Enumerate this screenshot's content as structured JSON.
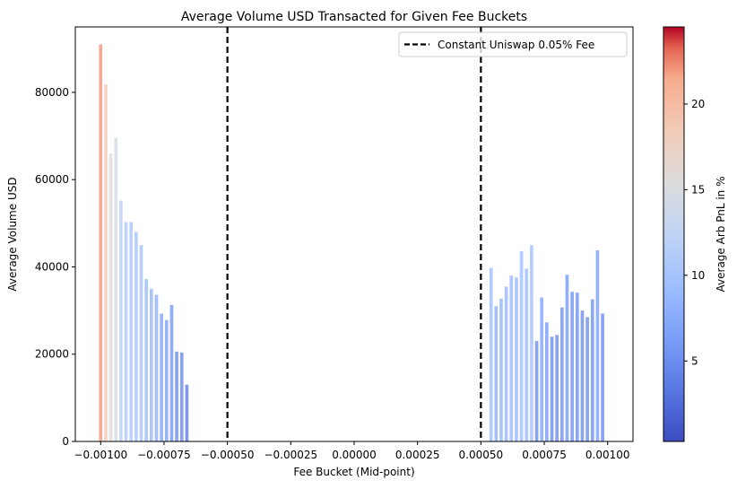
{
  "chart_data": {
    "type": "bar",
    "title": "Average Volume USD Transacted for Given Fee Buckets",
    "xlabel": "Fee Bucket (Mid-point)",
    "ylabel": "Average Volume USD",
    "xlim": [
      -0.0011,
      0.0011
    ],
    "ylim": [
      0,
      95000
    ],
    "xticks": [
      -0.001,
      -0.00075,
      -0.0005,
      -0.00025,
      0.0,
      0.00025,
      0.0005,
      0.00075,
      0.001
    ],
    "xtick_labels": [
      "−0.00100",
      "−0.00075",
      "−0.00050",
      "−0.00025",
      "0.00000",
      "0.00025",
      "0.00050",
      "0.00075",
      "0.00100"
    ],
    "yticks": [
      0,
      20000,
      40000,
      60000,
      80000
    ],
    "ytick_labels": [
      "0",
      "20000",
      "40000",
      "60000",
      "80000"
    ],
    "grid": false,
    "bars": [
      {
        "x": -0.001,
        "value": 91000,
        "pnl": 22.0
      },
      {
        "x": -0.00098,
        "value": 81800,
        "pnl": 18.5
      },
      {
        "x": -0.00096,
        "value": 66000,
        "pnl": 15.5
      },
      {
        "x": -0.00094,
        "value": 69500,
        "pnl": 14.5
      },
      {
        "x": -0.00092,
        "value": 55200,
        "pnl": 12.0
      },
      {
        "x": -0.0009,
        "value": 50300,
        "pnl": 11.0
      },
      {
        "x": -0.00088,
        "value": 50300,
        "pnl": 10.5
      },
      {
        "x": -0.00086,
        "value": 48000,
        "pnl": 10.2
      },
      {
        "x": -0.00084,
        "value": 45000,
        "pnl": 10.0
      },
      {
        "x": -0.00082,
        "value": 37200,
        "pnl": 9.2
      },
      {
        "x": -0.0008,
        "value": 35000,
        "pnl": 8.8
      },
      {
        "x": -0.00078,
        "value": 33600,
        "pnl": 8.0
      },
      {
        "x": -0.00076,
        "value": 29300,
        "pnl": 7.0
      },
      {
        "x": -0.00074,
        "value": 27800,
        "pnl": 6.5
      },
      {
        "x": -0.00072,
        "value": 31300,
        "pnl": 6.0
      },
      {
        "x": -0.0007,
        "value": 20600,
        "pnl": 5.0
      },
      {
        "x": -0.00068,
        "value": 20400,
        "pnl": 5.0
      },
      {
        "x": -0.00066,
        "value": 13000,
        "pnl": 4.0
      },
      {
        "x": 0.00054,
        "value": 39800,
        "pnl": 9.5
      },
      {
        "x": 0.00056,
        "value": 31000,
        "pnl": 8.0
      },
      {
        "x": 0.00058,
        "value": 32700,
        "pnl": 8.5
      },
      {
        "x": 0.0006,
        "value": 35500,
        "pnl": 8.8
      },
      {
        "x": 0.00062,
        "value": 38000,
        "pnl": 9.0
      },
      {
        "x": 0.00064,
        "value": 37600,
        "pnl": 9.0
      },
      {
        "x": 0.00066,
        "value": 43600,
        "pnl": 9.5
      },
      {
        "x": 0.00068,
        "value": 39600,
        "pnl": 9.2
      },
      {
        "x": 0.0007,
        "value": 45000,
        "pnl": 9.8
      },
      {
        "x": 0.00072,
        "value": 23000,
        "pnl": 5.0
      },
      {
        "x": 0.00074,
        "value": 33000,
        "pnl": 6.8
      },
      {
        "x": 0.00076,
        "value": 27300,
        "pnl": 6.0
      },
      {
        "x": 0.00078,
        "value": 24000,
        "pnl": 5.0
      },
      {
        "x": 0.0008,
        "value": 24400,
        "pnl": 5.0
      },
      {
        "x": 0.00082,
        "value": 30700,
        "pnl": 5.5
      },
      {
        "x": 0.00084,
        "value": 38200,
        "pnl": 6.0
      },
      {
        "x": 0.00086,
        "value": 34300,
        "pnl": 5.5
      },
      {
        "x": 0.00088,
        "value": 34100,
        "pnl": 5.5
      },
      {
        "x": 0.0009,
        "value": 30000,
        "pnl": 5.0
      },
      {
        "x": 0.00092,
        "value": 28500,
        "pnl": 5.0
      },
      {
        "x": 0.00094,
        "value": 32600,
        "pnl": 5.5
      },
      {
        "x": 0.00096,
        "value": 43800,
        "pnl": 6.5
      },
      {
        "x": 0.00098,
        "value": 29300,
        "pnl": 5.0
      }
    ],
    "reference_lines": [
      {
        "x": -0.0005,
        "style": "dashed",
        "color": "#000000"
      },
      {
        "x": 0.0005,
        "style": "dashed",
        "color": "#000000"
      }
    ],
    "legend": {
      "placement": "top-right",
      "entries": [
        {
          "label": "Constant Uniswap 0.05% Fee",
          "style": "dashed",
          "color": "#000000"
        }
      ]
    },
    "colorbar": {
      "label": "Average Arb PnL in %",
      "colormap": "coolwarm",
      "range": [
        0.3,
        24.5
      ],
      "ticks": [
        5,
        10,
        15,
        20
      ],
      "tick_labels": [
        "5",
        "10",
        "15",
        "20"
      ]
    },
    "bar_alpha": 0.8
  }
}
